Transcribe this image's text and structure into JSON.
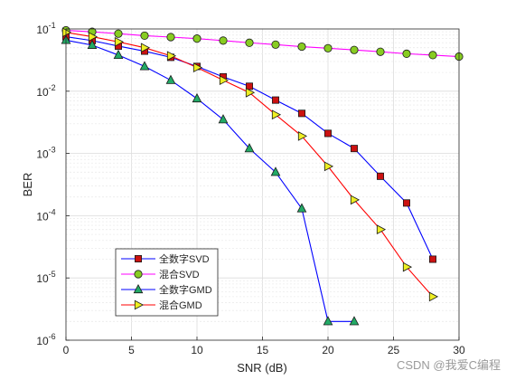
{
  "chart_data": {
    "type": "line",
    "title": "",
    "xlabel": "SNR (dB)",
    "ylabel": "BER",
    "xlim": [
      0,
      30
    ],
    "ylim": [
      1e-06,
      0.1
    ],
    "yscale": "log",
    "grid": true,
    "legend_position": "bottom-left",
    "x_ticks": [
      0,
      5,
      10,
      15,
      20,
      25,
      30
    ],
    "y_ticks": [
      {
        "value": 0.1,
        "base": "10",
        "exp": "-1"
      },
      {
        "value": 0.01,
        "base": "10",
        "exp": "-2"
      },
      {
        "value": 0.001,
        "base": "10",
        "exp": "-3"
      },
      {
        "value": 0.0001,
        "base": "10",
        "exp": "-4"
      },
      {
        "value": 1e-05,
        "base": "10",
        "exp": "-5"
      },
      {
        "value": 1e-06,
        "base": "10",
        "exp": "-6"
      }
    ],
    "series": [
      {
        "name": "全数字SVD",
        "color": "#0000ff",
        "marker": "square",
        "marker_color": "#cc1111",
        "x": [
          0,
          2,
          4,
          6,
          8,
          10,
          12,
          14,
          16,
          18,
          20,
          22,
          24,
          26,
          28
        ],
        "y": [
          0.075,
          0.065,
          0.053,
          0.044,
          0.035,
          0.025,
          0.017,
          0.012,
          0.0072,
          0.0044,
          0.0021,
          0.0012,
          0.00043,
          0.00016,
          2e-05
        ]
      },
      {
        "name": "混合SVD",
        "color": "#ff00ff",
        "marker": "circle",
        "marker_color": "#88cc22",
        "x": [
          0,
          2,
          4,
          6,
          8,
          10,
          12,
          14,
          16,
          18,
          20,
          22,
          24,
          26,
          28,
          30
        ],
        "y": [
          0.095,
          0.09,
          0.084,
          0.078,
          0.074,
          0.07,
          0.065,
          0.06,
          0.056,
          0.052,
          0.049,
          0.046,
          0.043,
          0.04,
          0.038,
          0.036
        ]
      },
      {
        "name": "全数字GMD",
        "color": "#0000ff",
        "marker": "triangle-up",
        "marker_color": "#22aa66",
        "x": [
          0,
          2,
          4,
          6,
          8,
          10,
          12,
          14,
          16,
          18,
          20,
          22
        ],
        "y": [
          0.066,
          0.055,
          0.038,
          0.025,
          0.015,
          0.0076,
          0.0035,
          0.0012,
          0.0005,
          0.00013,
          2e-06,
          2e-06
        ]
      },
      {
        "name": "混合GMD",
        "color": "#ff0000",
        "marker": "triangle-right",
        "marker_color": "#eeee22",
        "x": [
          0,
          2,
          4,
          6,
          8,
          10,
          12,
          14,
          16,
          18,
          20,
          22,
          24,
          26,
          28
        ],
        "y": [
          0.088,
          0.075,
          0.062,
          0.05,
          0.037,
          0.024,
          0.015,
          0.0095,
          0.0042,
          0.0019,
          0.00062,
          0.00018,
          6e-05,
          1.5e-05,
          5e-06
        ]
      }
    ]
  },
  "watermark": "CSDN @我爱C编程"
}
